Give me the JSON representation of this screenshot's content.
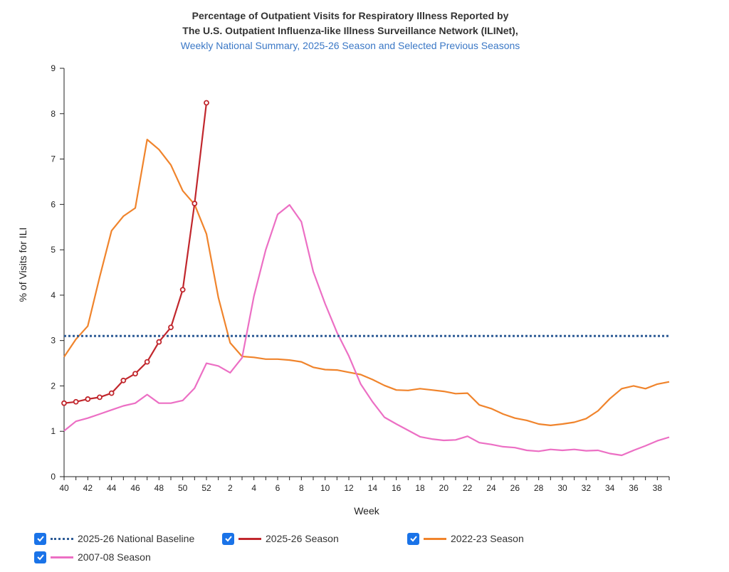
{
  "chart_data": {
    "type": "line",
    "title": "Percentage of Outpatient Visits for Respiratory Illness Reported by",
    "title2": "The U.S. Outpatient Influenza-like Illness Surveillance Network (ILINet),",
    "subtitle": "Weekly National Summary, 2025-26 Season and Selected Previous Seasons",
    "xlabel": "Week",
    "ylabel": "% of Visits for ILI",
    "ylim": [
      0,
      9
    ],
    "yticks": [
      0,
      1,
      2,
      3,
      4,
      5,
      6,
      7,
      8,
      9
    ],
    "weeks": [
      40,
      41,
      42,
      43,
      44,
      45,
      46,
      47,
      48,
      49,
      50,
      51,
      52,
      1,
      2,
      3,
      4,
      5,
      6,
      7,
      8,
      9,
      10,
      11,
      12,
      13,
      14,
      15,
      16,
      17,
      18,
      19,
      20,
      21,
      22,
      23,
      24,
      25,
      26,
      27,
      28,
      29,
      30,
      31,
      32,
      33,
      34,
      35,
      36,
      37,
      38,
      39
    ],
    "xtick_labels": [
      "40",
      "42",
      "44",
      "46",
      "48",
      "50",
      "52",
      "2",
      "4",
      "6",
      "8",
      "10",
      "12",
      "14",
      "16",
      "18",
      "20",
      "22",
      "24",
      "26",
      "28",
      "30",
      "32",
      "34",
      "36",
      "38"
    ],
    "series": [
      {
        "name": "2025-26 National Baseline",
        "color": "#2e5c96",
        "style": "dotted",
        "values": [
          3.1,
          3.1,
          3.1,
          3.1,
          3.1,
          3.1,
          3.1,
          3.1,
          3.1,
          3.1,
          3.1,
          3.1,
          3.1,
          3.1,
          3.1,
          3.1,
          3.1,
          3.1,
          3.1,
          3.1,
          3.1,
          3.1,
          3.1,
          3.1,
          3.1,
          3.1,
          3.1,
          3.1,
          3.1,
          3.1,
          3.1,
          3.1,
          3.1,
          3.1,
          3.1,
          3.1,
          3.1,
          3.1,
          3.1,
          3.1,
          3.1,
          3.1,
          3.1,
          3.1,
          3.1,
          3.1,
          3.1,
          3.1,
          3.1,
          3.1,
          3.1,
          3.1
        ]
      },
      {
        "name": "2025-26 Season",
        "color": "#c1272d",
        "style": "solid-markers",
        "values": [
          1.62,
          1.65,
          1.71,
          1.75,
          1.84,
          2.12,
          2.27,
          2.53,
          2.97,
          3.29,
          4.12,
          6.02,
          8.24
        ]
      },
      {
        "name": "2022-23 Season",
        "color": "#f0842c",
        "style": "solid",
        "values": [
          2.64,
          3.03,
          3.32,
          4.4,
          5.42,
          5.74,
          5.92,
          7.43,
          7.21,
          6.87,
          6.3,
          6.0,
          5.35,
          3.95,
          2.95,
          2.65,
          2.63,
          2.59,
          2.59,
          2.57,
          2.53,
          2.41,
          2.36,
          2.35,
          2.3,
          2.25,
          2.14,
          2.01,
          1.91,
          1.9,
          1.94,
          1.91,
          1.88,
          1.83,
          1.84,
          1.58,
          1.5,
          1.38,
          1.29,
          1.24,
          1.16,
          1.13,
          1.16,
          1.2,
          1.28,
          1.45,
          1.72,
          1.94,
          2.0,
          1.94,
          2.04,
          2.09
        ]
      },
      {
        "name": "2007-08 Season",
        "color": "#ec6fc4",
        "style": "solid",
        "values": [
          1.01,
          1.22,
          1.29,
          1.38,
          1.47,
          1.56,
          1.62,
          1.81,
          1.62,
          1.62,
          1.68,
          1.95,
          2.5,
          2.44,
          2.29,
          2.62,
          3.98,
          5.0,
          5.78,
          5.99,
          5.62,
          4.52,
          3.81,
          3.18,
          2.66,
          2.04,
          1.65,
          1.31,
          1.16,
          1.02,
          0.88,
          0.83,
          0.8,
          0.81,
          0.89,
          0.75,
          0.71,
          0.66,
          0.64,
          0.58,
          0.56,
          0.6,
          0.58,
          0.6,
          0.57,
          0.58,
          0.51,
          0.47,
          0.58,
          0.68,
          0.79,
          0.87
        ]
      }
    ],
    "legend_position": "bottom"
  },
  "legend": [
    {
      "label": "2025-26 National Baseline",
      "checked": true
    },
    {
      "label": "2025-26 Season",
      "checked": true
    },
    {
      "label": "2022-23 Season",
      "checked": true
    },
    {
      "label": "2007-08 Season",
      "checked": true
    }
  ]
}
